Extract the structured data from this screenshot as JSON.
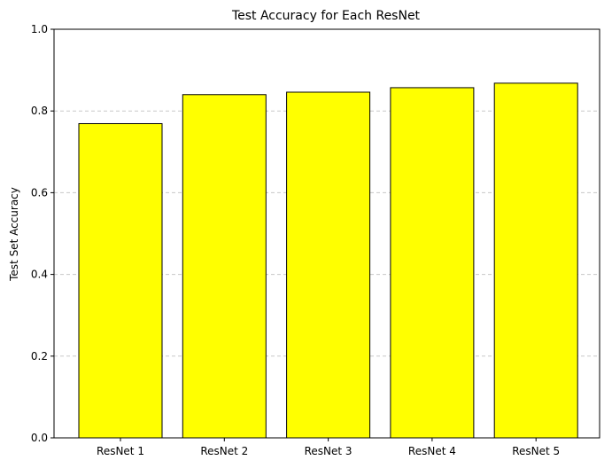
{
  "chart_data": {
    "type": "bar",
    "title": "Test Accuracy for Each ResNet",
    "xlabel": "",
    "ylabel": "Test Set Accuracy",
    "categories": [
      "ResNet 1",
      "ResNet 2",
      "ResNet 3",
      "ResNet 4",
      "ResNet 5"
    ],
    "values": [
      0.769,
      0.84,
      0.846,
      0.857,
      0.868
    ],
    "ylim": [
      0,
      1.0
    ],
    "yticks": [
      "0.0",
      "0.2",
      "0.4",
      "0.6",
      "0.8",
      "1.0"
    ],
    "grid": "y-dashed",
    "bar_color": "#ffff00",
    "bar_edge_color": "#000000",
    "grid_color": "#c8c8c8"
  }
}
